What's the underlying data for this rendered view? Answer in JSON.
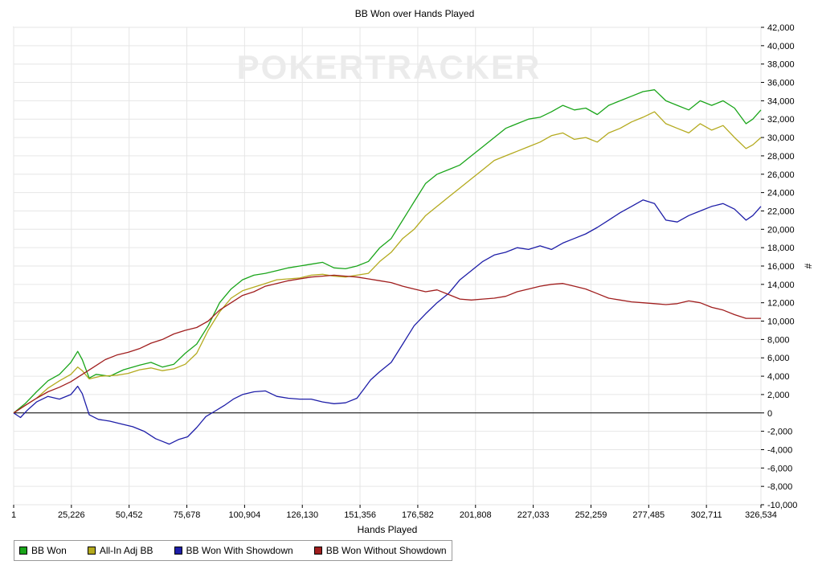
{
  "chart_data": {
    "type": "line",
    "title": "BB Won over Hands Played",
    "xlabel": "Hands Played",
    "ylabel": "#",
    "xlim": [
      1,
      326534
    ],
    "ylim": [
      -10000,
      42000
    ],
    "x_ticks": [
      "1",
      "25,226",
      "50,452",
      "75,678",
      "100,904",
      "126,130",
      "151,356",
      "176,582",
      "201,808",
      "227,033",
      "252,259",
      "277,485",
      "302,711",
      "326,534"
    ],
    "y_ticks": [
      "-10,000",
      "-8,000",
      "-6,000",
      "-4,000",
      "-2,000",
      "0",
      "2,000",
      "4,000",
      "6,000",
      "8,000",
      "10,000",
      "12,000",
      "14,000",
      "16,000",
      "18,000",
      "20,000",
      "22,000",
      "24,000",
      "26,000",
      "28,000",
      "30,000",
      "32,000",
      "34,000",
      "36,000",
      "38,000",
      "40,000",
      "42,000"
    ],
    "grid": true,
    "legend_position": "bottom",
    "watermark": "POKERTRACKER",
    "series": [
      {
        "name": "BB Won",
        "color": "#1aa51a",
        "points": [
          [
            1,
            0
          ],
          [
            5000,
            1000
          ],
          [
            10000,
            2300
          ],
          [
            15000,
            3500
          ],
          [
            20000,
            4200
          ],
          [
            25000,
            5500
          ],
          [
            28000,
            6700
          ],
          [
            30000,
            5800
          ],
          [
            33000,
            3800
          ],
          [
            36000,
            4200
          ],
          [
            42000,
            4000
          ],
          [
            48000,
            4700
          ],
          [
            55000,
            5200
          ],
          [
            60000,
            5500
          ],
          [
            65000,
            5000
          ],
          [
            70000,
            5300
          ],
          [
            75000,
            6500
          ],
          [
            80000,
            7500
          ],
          [
            85000,
            9500
          ],
          [
            90000,
            12000
          ],
          [
            95000,
            13500
          ],
          [
            100000,
            14500
          ],
          [
            105000,
            15000
          ],
          [
            110000,
            15200
          ],
          [
            115000,
            15500
          ],
          [
            120000,
            15800
          ],
          [
            125000,
            16000
          ],
          [
            130000,
            16200
          ],
          [
            135000,
            16400
          ],
          [
            140000,
            15800
          ],
          [
            145000,
            15700
          ],
          [
            150000,
            16000
          ],
          [
            155000,
            16500
          ],
          [
            160000,
            18000
          ],
          [
            165000,
            19000
          ],
          [
            170000,
            21000
          ],
          [
            175000,
            23000
          ],
          [
            180000,
            25000
          ],
          [
            185000,
            26000
          ],
          [
            190000,
            26500
          ],
          [
            195000,
            27000
          ],
          [
            200000,
            28000
          ],
          [
            205000,
            29000
          ],
          [
            210000,
            30000
          ],
          [
            215000,
            31000
          ],
          [
            220000,
            31500
          ],
          [
            225000,
            32000
          ],
          [
            230000,
            32200
          ],
          [
            235000,
            32800
          ],
          [
            240000,
            33500
          ],
          [
            245000,
            33000
          ],
          [
            250000,
            33200
          ],
          [
            255000,
            32500
          ],
          [
            260000,
            33500
          ],
          [
            265000,
            34000
          ],
          [
            270000,
            34500
          ],
          [
            275000,
            35000
          ],
          [
            280000,
            35200
          ],
          [
            285000,
            34000
          ],
          [
            290000,
            33500
          ],
          [
            295000,
            33000
          ],
          [
            300000,
            34000
          ],
          [
            305000,
            33500
          ],
          [
            310000,
            34000
          ],
          [
            315000,
            33200
          ],
          [
            320000,
            31500
          ],
          [
            323000,
            32000
          ],
          [
            326534,
            33000
          ]
        ]
      },
      {
        "name": "All-In Adj BB",
        "color": "#b4aa1e",
        "points": [
          [
            1,
            0
          ],
          [
            5000,
            800
          ],
          [
            10000,
            1600
          ],
          [
            15000,
            2700
          ],
          [
            20000,
            3500
          ],
          [
            25000,
            4200
          ],
          [
            28000,
            5000
          ],
          [
            30000,
            4600
          ],
          [
            33000,
            3700
          ],
          [
            38000,
            4000
          ],
          [
            45000,
            4100
          ],
          [
            50000,
            4300
          ],
          [
            55000,
            4700
          ],
          [
            60000,
            4900
          ],
          [
            65000,
            4600
          ],
          [
            70000,
            4800
          ],
          [
            75000,
            5300
          ],
          [
            80000,
            6500
          ],
          [
            85000,
            9000
          ],
          [
            90000,
            11000
          ],
          [
            95000,
            12500
          ],
          [
            100000,
            13300
          ],
          [
            105000,
            13700
          ],
          [
            110000,
            14100
          ],
          [
            115000,
            14500
          ],
          [
            120000,
            14600
          ],
          [
            125000,
            14700
          ],
          [
            130000,
            15000
          ],
          [
            135000,
            15100
          ],
          [
            140000,
            14900
          ],
          [
            145000,
            14800
          ],
          [
            150000,
            15000
          ],
          [
            155000,
            15200
          ],
          [
            160000,
            16500
          ],
          [
            165000,
            17500
          ],
          [
            170000,
            19000
          ],
          [
            175000,
            20000
          ],
          [
            180000,
            21500
          ],
          [
            185000,
            22500
          ],
          [
            190000,
            23500
          ],
          [
            195000,
            24500
          ],
          [
            200000,
            25500
          ],
          [
            205000,
            26500
          ],
          [
            210000,
            27500
          ],
          [
            215000,
            28000
          ],
          [
            220000,
            28500
          ],
          [
            225000,
            29000
          ],
          [
            230000,
            29500
          ],
          [
            235000,
            30200
          ],
          [
            240000,
            30500
          ],
          [
            245000,
            29800
          ],
          [
            250000,
            30000
          ],
          [
            255000,
            29500
          ],
          [
            260000,
            30500
          ],
          [
            265000,
            31000
          ],
          [
            270000,
            31700
          ],
          [
            275000,
            32200
          ],
          [
            280000,
            32800
          ],
          [
            285000,
            31500
          ],
          [
            290000,
            31000
          ],
          [
            295000,
            30500
          ],
          [
            300000,
            31500
          ],
          [
            305000,
            30800
          ],
          [
            310000,
            31300
          ],
          [
            315000,
            30000
          ],
          [
            320000,
            28800
          ],
          [
            323000,
            29200
          ],
          [
            326534,
            30000
          ]
        ]
      },
      {
        "name": "BB Won With Showdown",
        "color": "#1e1ea8",
        "points": [
          [
            1,
            0
          ],
          [
            3000,
            -500
          ],
          [
            6000,
            300
          ],
          [
            10000,
            1200
          ],
          [
            15000,
            1800
          ],
          [
            20000,
            1500
          ],
          [
            25000,
            2000
          ],
          [
            28000,
            2900
          ],
          [
            30000,
            2100
          ],
          [
            33000,
            -200
          ],
          [
            37000,
            -700
          ],
          [
            42000,
            -900
          ],
          [
            47000,
            -1200
          ],
          [
            52000,
            -1500
          ],
          [
            57000,
            -2000
          ],
          [
            62000,
            -2800
          ],
          [
            65000,
            -3100
          ],
          [
            68000,
            -3400
          ],
          [
            72000,
            -2900
          ],
          [
            76000,
            -2600
          ],
          [
            80000,
            -1600
          ],
          [
            84000,
            -400
          ],
          [
            88000,
            200
          ],
          [
            92000,
            800
          ],
          [
            96000,
            1500
          ],
          [
            100000,
            2000
          ],
          [
            105000,
            2300
          ],
          [
            110000,
            2400
          ],
          [
            115000,
            1800
          ],
          [
            120000,
            1600
          ],
          [
            125000,
            1500
          ],
          [
            130000,
            1500
          ],
          [
            135000,
            1200
          ],
          [
            140000,
            1000
          ],
          [
            145000,
            1100
          ],
          [
            150000,
            1600
          ],
          [
            153000,
            2600
          ],
          [
            156000,
            3600
          ],
          [
            160000,
            4500
          ],
          [
            165000,
            5500
          ],
          [
            170000,
            7500
          ],
          [
            175000,
            9500
          ],
          [
            180000,
            10800
          ],
          [
            185000,
            12000
          ],
          [
            190000,
            13000
          ],
          [
            195000,
            14500
          ],
          [
            200000,
            15500
          ],
          [
            205000,
            16500
          ],
          [
            210000,
            17200
          ],
          [
            215000,
            17500
          ],
          [
            220000,
            18000
          ],
          [
            225000,
            17800
          ],
          [
            230000,
            18200
          ],
          [
            235000,
            17800
          ],
          [
            240000,
            18500
          ],
          [
            245000,
            19000
          ],
          [
            250000,
            19500
          ],
          [
            255000,
            20200
          ],
          [
            260000,
            21000
          ],
          [
            265000,
            21800
          ],
          [
            270000,
            22500
          ],
          [
            275000,
            23200
          ],
          [
            280000,
            22800
          ],
          [
            285000,
            21000
          ],
          [
            290000,
            20800
          ],
          [
            295000,
            21500
          ],
          [
            300000,
            22000
          ],
          [
            305000,
            22500
          ],
          [
            310000,
            22800
          ],
          [
            315000,
            22200
          ],
          [
            320000,
            21000
          ],
          [
            323000,
            21500
          ],
          [
            326534,
            22500
          ]
        ]
      },
      {
        "name": "BB Won Without Showdown",
        "color": "#a01e1e",
        "points": [
          [
            1,
            0
          ],
          [
            5000,
            800
          ],
          [
            10000,
            1600
          ],
          [
            15000,
            2300
          ],
          [
            20000,
            2800
          ],
          [
            25000,
            3400
          ],
          [
            30000,
            4200
          ],
          [
            35000,
            5000
          ],
          [
            40000,
            5800
          ],
          [
            45000,
            6300
          ],
          [
            50000,
            6600
          ],
          [
            55000,
            7000
          ],
          [
            60000,
            7600
          ],
          [
            65000,
            8000
          ],
          [
            70000,
            8600
          ],
          [
            75000,
            9000
          ],
          [
            80000,
            9300
          ],
          [
            85000,
            10000
          ],
          [
            90000,
            11200
          ],
          [
            95000,
            12000
          ],
          [
            100000,
            12800
          ],
          [
            105000,
            13200
          ],
          [
            110000,
            13800
          ],
          [
            115000,
            14100
          ],
          [
            120000,
            14400
          ],
          [
            125000,
            14600
          ],
          [
            130000,
            14800
          ],
          [
            135000,
            14900
          ],
          [
            140000,
            15000
          ],
          [
            145000,
            14900
          ],
          [
            150000,
            14800
          ],
          [
            155000,
            14600
          ],
          [
            160000,
            14400
          ],
          [
            165000,
            14200
          ],
          [
            170000,
            13800
          ],
          [
            175000,
            13500
          ],
          [
            180000,
            13200
          ],
          [
            185000,
            13400
          ],
          [
            190000,
            12900
          ],
          [
            195000,
            12400
          ],
          [
            200000,
            12300
          ],
          [
            205000,
            12400
          ],
          [
            210000,
            12500
          ],
          [
            215000,
            12700
          ],
          [
            220000,
            13200
          ],
          [
            225000,
            13500
          ],
          [
            230000,
            13800
          ],
          [
            235000,
            14000
          ],
          [
            240000,
            14100
          ],
          [
            245000,
            13800
          ],
          [
            250000,
            13500
          ],
          [
            255000,
            13000
          ],
          [
            260000,
            12500
          ],
          [
            265000,
            12300
          ],
          [
            270000,
            12100
          ],
          [
            275000,
            12000
          ],
          [
            280000,
            11900
          ],
          [
            285000,
            11800
          ],
          [
            290000,
            11900
          ],
          [
            295000,
            12200
          ],
          [
            300000,
            12000
          ],
          [
            305000,
            11500
          ],
          [
            310000,
            11200
          ],
          [
            315000,
            10700
          ],
          [
            320000,
            10300
          ],
          [
            323000,
            10300
          ],
          [
            326534,
            10300
          ]
        ]
      }
    ]
  }
}
